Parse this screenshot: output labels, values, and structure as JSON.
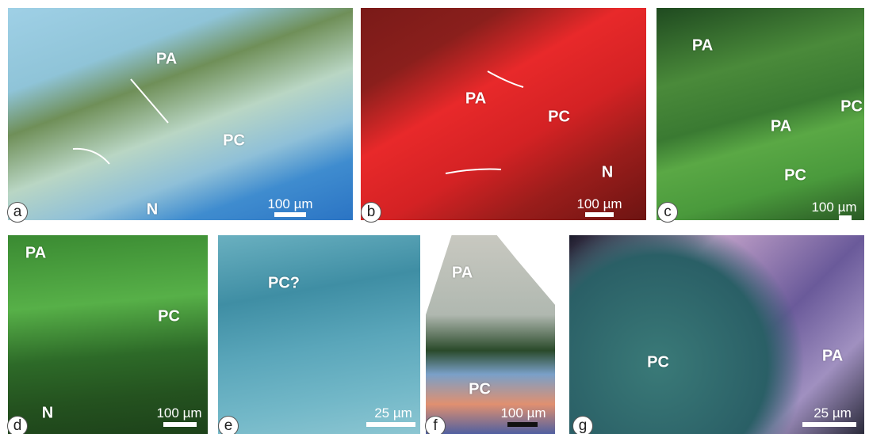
{
  "panels": [
    {
      "letter": "a",
      "labels": [
        "PA",
        "PC",
        "N"
      ],
      "scale": "100 µm"
    },
    {
      "letter": "b",
      "labels": [
        "PA",
        "PC",
        "N"
      ],
      "scale": "100 µm"
    },
    {
      "letter": "c",
      "labels": [
        "PA",
        "PA",
        "PC",
        "PC"
      ],
      "scale": "100 µm"
    },
    {
      "letter": "d",
      "labels": [
        "PA",
        "PC",
        "N"
      ],
      "scale": "100 µm"
    },
    {
      "letter": "e",
      "labels": [
        "PC?"
      ],
      "scale": "25 µm"
    },
    {
      "letter": "f",
      "labels": [
        "PA",
        "PC"
      ],
      "scale": "100 µm"
    },
    {
      "letter": "g",
      "labels": [
        "PC",
        "PA"
      ],
      "scale": "25 µm"
    }
  ]
}
